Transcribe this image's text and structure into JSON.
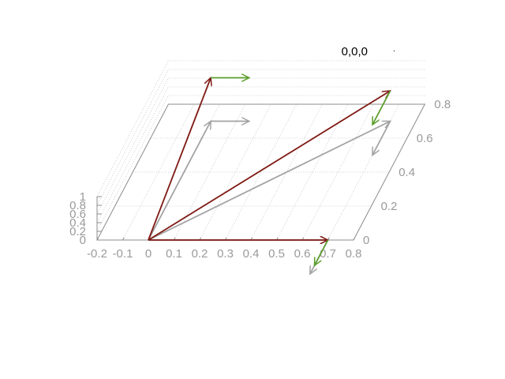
{
  "chart_data": {
    "type": "3d-vector",
    "title": "",
    "legend": [
      {
        "label": "0,0,0",
        "position": "top-right"
      }
    ],
    "x_axis": {
      "label": "",
      "range": [
        -0.2,
        0.8
      ],
      "ticks": [
        "-0.2",
        "-0.1",
        "0",
        "0.1",
        "0.2",
        "0.3",
        "0.4",
        "0.5",
        "0.6",
        "0.7",
        "0.8"
      ]
    },
    "y_axis": {
      "label": "",
      "range": [
        0,
        0.8
      ],
      "ticks": [
        "0",
        "0.2",
        "0.4",
        "0.6",
        "0.8"
      ]
    },
    "z_axis": {
      "label": "",
      "range": [
        0,
        1
      ],
      "ticks": [
        "0",
        "0.2",
        "0.4",
        "0.6",
        "0.8",
        "1"
      ]
    },
    "grid": true,
    "colors": {
      "primary_vectors": "#7f1a14",
      "projected_vectors": "#a3a3a3",
      "derivative_vectors": "#5c9e2e",
      "axes": "#8c8c8c",
      "grid": "#c0c0c0"
    },
    "series": [
      {
        "role": "primary",
        "color": "#7f1a14",
        "vectors": [
          {
            "from": [
              0,
              0,
              0
            ],
            "to": [
              0.7,
              0,
              0
            ]
          },
          {
            "from": [
              0,
              0,
              0
            ],
            "to": [
              0.7,
              0.7,
              0.7
            ]
          },
          {
            "from": [
              0,
              0,
              0
            ],
            "to": [
              0,
              0.7,
              1
            ]
          }
        ]
      },
      {
        "role": "projection",
        "color": "#a3a3a3",
        "vectors": [
          {
            "from": [
              0,
              0,
              0
            ],
            "to": [
              0.7,
              0,
              0
            ]
          },
          {
            "from": [
              0,
              0,
              0
            ],
            "to": [
              0.7,
              0.7,
              0
            ]
          },
          {
            "from": [
              0,
              0,
              0
            ],
            "to": [
              0,
              0.7,
              0
            ]
          },
          {
            "from": [
              0.7,
              0,
              0
            ],
            "to": [
              0.7,
              -0.2,
              0
            ]
          },
          {
            "from": [
              0.7,
              0.7,
              0
            ],
            "to": [
              0.7,
              0.5,
              0
            ]
          },
          {
            "from": [
              0,
              0.7,
              0
            ],
            "to": [
              0.15,
              0.7,
              0
            ]
          }
        ]
      },
      {
        "role": "derivative",
        "color": "#5c9e2e",
        "vectors": [
          {
            "from": [
              0.7,
              0,
              0
            ],
            "to": [
              0.7,
              -0.15,
              0
            ]
          },
          {
            "from": [
              0.7,
              0.7,
              0.7
            ],
            "to": [
              0.7,
              0.5,
              0.7
            ]
          },
          {
            "from": [
              0,
              0.7,
              1
            ],
            "to": [
              0.15,
              0.7,
              1
            ]
          }
        ]
      }
    ]
  }
}
